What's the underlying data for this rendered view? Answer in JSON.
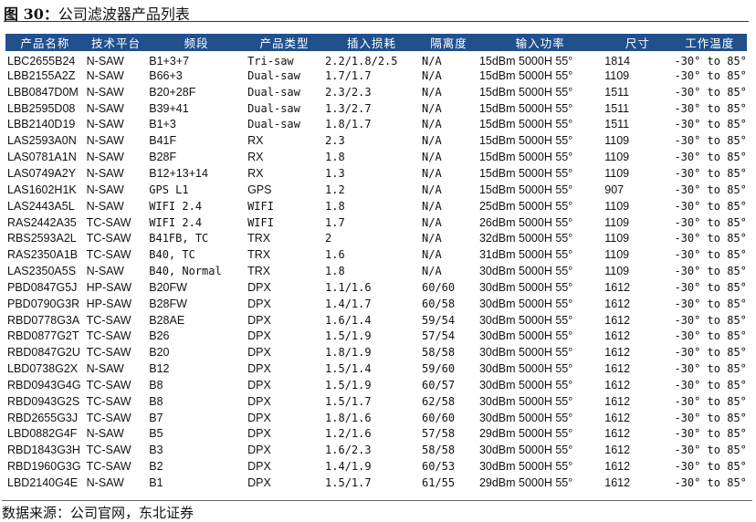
{
  "title": {
    "label": "图 30：",
    "text": "公司滤波器产品列表"
  },
  "table": {
    "headers": [
      "产品名称",
      "技术平台",
      "频段",
      "产品类型",
      "插入损耗",
      "隔离度",
      "输入功率",
      "尺寸",
      "工作温度"
    ],
    "rows": [
      [
        "LBC2655B24",
        "N-SAW",
        "B1+3+7",
        "Tri-saw",
        "2.2/1.8/2.5",
        "N/A",
        "15dBm 5000H 55°",
        "1814",
        "-30° to 85°"
      ],
      [
        "LBB2155A2Z",
        "N-SAW",
        "B66+3",
        "Dual-saw",
        "1.7/1.7",
        "N/A",
        "15dBm 5000H 55°",
        "1109",
        "-30° to 85°"
      ],
      [
        "LBB0847D0M",
        "N-SAW",
        "B20+28F",
        "Dual-saw",
        "2.3/2.3",
        "N/A",
        "15dBm 5000H 55°",
        "1511",
        "-30° to 85°"
      ],
      [
        "LBB2595D08",
        "N-SAW",
        "B39+41",
        "Dual-saw",
        "1.3/2.7",
        "N/A",
        "15dBm 5000H 55°",
        "1511",
        "-30° to 85°"
      ],
      [
        "LBB2140D19",
        "N-SAW",
        "B1+3",
        "Dual-saw",
        "1.8/1.7",
        "N/A",
        "15dBm 5000H 55°",
        "1511",
        "-30° to 85°"
      ],
      [
        "LAS2593A0N",
        "N-SAW",
        "B41F",
        "RX",
        "2.3",
        "N/A",
        "15dBm 5000H 55°",
        "1109",
        "-30° to 85°"
      ],
      [
        "LAS0781A1N",
        "N-SAW",
        "B28F",
        "RX",
        "1.8",
        "N/A",
        "15dBm 5000H 55°",
        "1109",
        "-30° to 85°"
      ],
      [
        "LAS0749A2Y",
        "N-SAW",
        "B12+13+14",
        "RX",
        "1.3",
        "N/A",
        "15dBm 5000H 55°",
        "1109",
        "-30° to 85°"
      ],
      [
        "LAS1602H1K",
        "N-SAW",
        "GPS L1",
        "GPS",
        "1.2",
        "N/A",
        "15dBm 5000H 55°",
        "907",
        "-30° to 85°"
      ],
      [
        "LAS2443A5L",
        "N-SAW",
        "WIFI 2.4",
        "WIFI",
        "1.8",
        "N/A",
        "25dBm 5000H 55°",
        "1109",
        "-30° to 85°"
      ],
      [
        "RAS2442A35",
        "TC-SAW",
        "WIFI 2.4",
        "WIFI",
        "1.7",
        "N/A",
        "26dBm 5000H 55°",
        "1109",
        "-30° to 85°"
      ],
      [
        "RBS2593A2L",
        "TC-SAW",
        "B41FB, TC",
        "TRX",
        "2",
        "N/A",
        "32dBm 5000H 55°",
        "1109",
        "-30° to 85°"
      ],
      [
        "RAS2350A1B",
        "TC-SAW",
        "B40, TC",
        "TRX",
        "1.6",
        "N/A",
        "31dBm 5000H 55°",
        "1109",
        "-30° to 85°"
      ],
      [
        "LAS2350A5S",
        "N-SAW",
        "B40, Normal",
        "TRX",
        "1.8",
        "N/A",
        "30dBm 5000H 55°",
        "1109",
        "-30° to 85°"
      ],
      [
        "PBD0847G5J",
        "HP-SAW",
        "B20FW",
        "DPX",
        "1.1/1.6",
        "60/60",
        "30dBm 5000H 55°",
        "1612",
        "-30° to 85°"
      ],
      [
        "PBD0790G3R",
        "HP-SAW",
        "B28FW",
        "DPX",
        "1.4/1.7",
        "60/58",
        "30dBm 5000H 55°",
        "1612",
        "-30° to 85°"
      ],
      [
        "RBD0778G3A",
        "TC-SAW",
        "B28AE",
        "DPX",
        "1.6/1.4",
        "59/54",
        "30dBm 5000H 55°",
        "1612",
        "-30° to 85°"
      ],
      [
        "RBD0877G2T",
        "TC-SAW",
        "B26",
        "DPX",
        "1.5/1.9",
        "57/54",
        "30dBm 5000H 55°",
        "1612",
        "-30° to 85°"
      ],
      [
        "RBD0847G2U",
        "TC-SAW",
        "B20",
        "DPX",
        "1.8/1.9",
        "58/58",
        "30dBm 5000H 55°",
        "1612",
        "-30° to 85°"
      ],
      [
        "LBD0738G2X",
        "N-SAW",
        "B12",
        "DPX",
        "1.5/1.4",
        "59/60",
        "30dBm 5000H 55°",
        "1612",
        "-30° to 85°"
      ],
      [
        "RBD0943G4G",
        "TC-SAW",
        "B8",
        "DPX",
        "1.5/1.9",
        "60/57",
        "30dBm 5000H 55°",
        "1612",
        "-30° to 85°"
      ],
      [
        "RBD0943G2S",
        "TC-SAW",
        "B8",
        "DPX",
        "1.5/1.7",
        "62/58",
        "30dBm 5000H 55°",
        "1612",
        "-30° to 85°"
      ],
      [
        "RBD2655G3J",
        "TC-SAW",
        "B7",
        "DPX",
        "1.8/1.6",
        "60/60",
        "30dBm 5000H 55°",
        "1612",
        "-30° to 85°"
      ],
      [
        "LBD0882G4F",
        "N-SAW",
        "B5",
        "DPX",
        "1.2/1.6",
        "57/58",
        "29dBm 5000H 55°",
        "1612",
        "-30° to 85°"
      ],
      [
        "RBD1843G3H",
        "TC-SAW",
        "B3",
        "DPX",
        "1.6/2.3",
        "58/58",
        "30dBm 5000H 55°",
        "1612",
        "-30° to 85°"
      ],
      [
        "RBD1960G3G",
        "TC-SAW",
        "B2",
        "DPX",
        "1.4/1.9",
        "60/53",
        "30dBm 5000H 55°",
        "1612",
        "-30° to 85°"
      ],
      [
        "LBD2140G4E",
        "N-SAW",
        "B1",
        "DPX",
        "1.5/1.7",
        "61/55",
        "29dBm 5000H 55°",
        "1612",
        "-30° to 85°"
      ]
    ]
  },
  "source": "数据来源：公司官网，东北证券",
  "colors": {
    "header_bg": "#21508d",
    "header_text": "#ffffff"
  }
}
